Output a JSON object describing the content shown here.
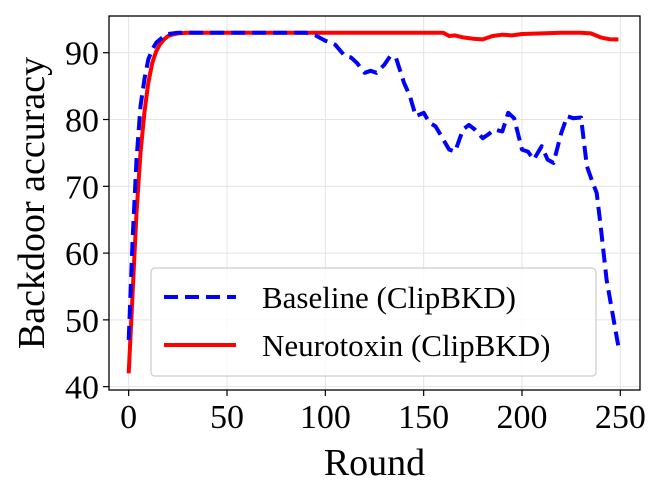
{
  "chart_data": {
    "type": "line",
    "xlabel": "Round",
    "ylabel": "Backdoor accuracy",
    "xlim": [
      -10,
      260
    ],
    "ylim": [
      39.5,
      95.5
    ],
    "xticks": [
      0,
      50,
      100,
      150,
      200,
      250
    ],
    "yticks": [
      40,
      50,
      60,
      70,
      80,
      90
    ],
    "grid": true,
    "legend_position": "lower-right",
    "series": [
      {
        "name": "Baseline (ClipBKD)",
        "color": "#0000ff",
        "style": "dashed",
        "x": [
          0,
          2,
          4,
          6,
          8,
          10,
          12,
          14,
          16,
          18,
          20,
          25,
          30,
          40,
          50,
          60,
          70,
          80,
          90,
          95,
          100,
          105,
          110,
          113,
          116,
          120,
          123,
          126,
          130,
          133,
          136,
          140,
          143,
          146,
          150,
          153,
          156,
          160,
          163,
          166,
          170,
          173,
          176,
          180,
          183,
          186,
          190,
          193,
          196,
          200,
          203,
          206,
          210,
          213,
          216,
          220,
          223,
          226,
          230,
          233,
          236,
          238,
          240,
          243,
          246,
          249
        ],
        "y": [
          47,
          62,
          74,
          82,
          86,
          89,
          90.5,
          91.5,
          92,
          92.5,
          92.8,
          93,
          93,
          93,
          93,
          93,
          93,
          93,
          93,
          92.6,
          91.8,
          91.2,
          89.5,
          89.3,
          88.5,
          87,
          87.3,
          87,
          88.2,
          89.5,
          89.2,
          85.5,
          83.5,
          80.5,
          81,
          79.5,
          79,
          77,
          75.5,
          75.2,
          78.5,
          79.2,
          78.5,
          77.2,
          77.8,
          78.5,
          78.2,
          81,
          80.2,
          75.5,
          75.2,
          74,
          76,
          74,
          73.5,
          78,
          80.5,
          80.2,
          80.3,
          73,
          70.5,
          69,
          64,
          56,
          51,
          46
        ]
      },
      {
        "name": "Neurotoxin (ClipBKD)",
        "color": "#ff0000",
        "style": "solid",
        "x": [
          0,
          2,
          4,
          6,
          8,
          10,
          12,
          14,
          16,
          18,
          20,
          22,
          25,
          30,
          40,
          50,
          60,
          80,
          100,
          120,
          140,
          160,
          163,
          166,
          170,
          175,
          180,
          185,
          190,
          195,
          200,
          210,
          220,
          230,
          235,
          240,
          245,
          249
        ],
        "y": [
          42,
          54,
          66,
          75,
          81,
          85.5,
          88.5,
          90.2,
          91.3,
          92,
          92.5,
          92.7,
          92.9,
          93,
          93,
          93,
          93,
          93,
          93,
          93,
          93,
          93,
          92.5,
          92.6,
          92.3,
          92.1,
          92,
          92.5,
          92.7,
          92.6,
          92.8,
          92.9,
          93,
          93,
          92.9,
          92.3,
          92,
          92
        ]
      }
    ]
  }
}
